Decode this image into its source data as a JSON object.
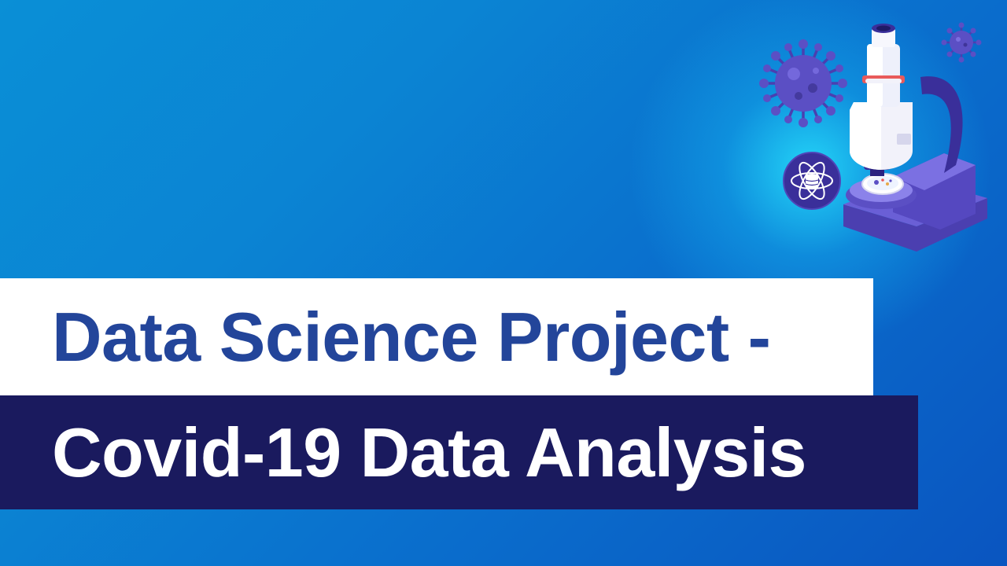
{
  "title": {
    "line1": "Data Science Project -",
    "line2": "Covid-19 Data Analysis"
  },
  "colors": {
    "background_start": "#0a8fd6",
    "background_end": "#0a55c0",
    "line1_band": "#ffffff",
    "line1_text": "#23459a",
    "line2_band": "#1a1a5e",
    "line2_text": "#ffffff",
    "virus": "#5b4fc4",
    "microscope_body": "#f2f2fa",
    "microscope_base": "#6a5fd6",
    "accent_ring": "#e85a5a"
  },
  "icons": [
    "virus-icon",
    "microscope-icon",
    "atom-database-icon",
    "petri-dish-icon"
  ]
}
